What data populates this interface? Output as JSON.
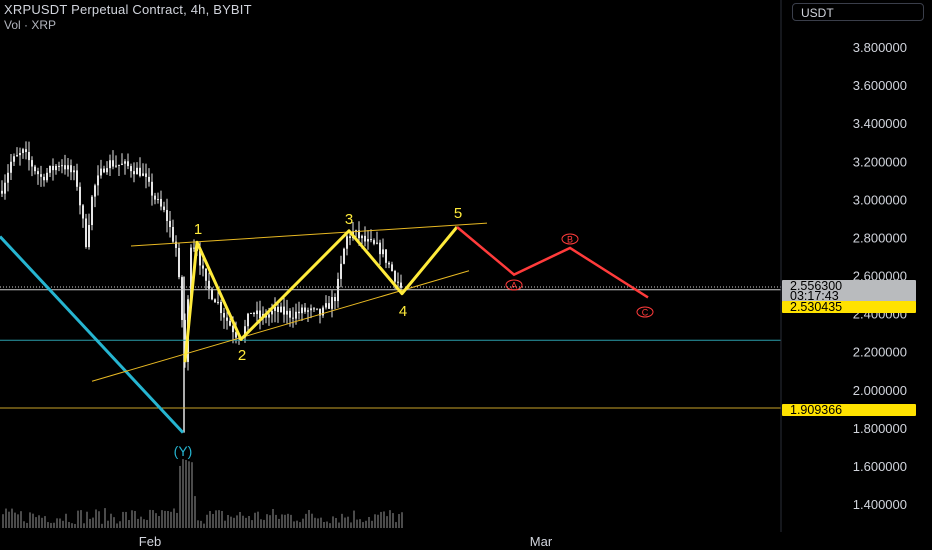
{
  "header": {
    "title": "XRPUSDT Perpetual Contract, 4h, BYBIT",
    "volume_label": "Vol · XRP"
  },
  "currency_button": "USDT",
  "colors": {
    "background": "#000000",
    "candles": "#e6e6e6",
    "wave_impulse": "#ffeb3b",
    "wave_correction": "#ff3b3b",
    "trendline": "#e8b923",
    "blue_line": "#26b5d1",
    "horizontal_level": "#c9a227",
    "cyan_level": "#2a9dab",
    "price_badge_yellow": "#ffe200",
    "price_badge_grey": "#b9bbbe",
    "volume": "#4b4b4b"
  },
  "price_badges": [
    {
      "label": "2.556300",
      "style": "grey"
    },
    {
      "label": "03:17:43",
      "style": "grey"
    },
    {
      "label": "2.530435",
      "style": "yellow"
    },
    {
      "label": "1.909366",
      "style": "yellow"
    }
  ],
  "chart_data": {
    "type": "line",
    "title": "XRPUSDT Perpetual Contract, 4h, BYBIT",
    "x_axis": {
      "ticks": [
        "Feb",
        "Mar"
      ]
    },
    "y_axis": {
      "ticks": [
        "3.800000",
        "3.600000",
        "3.400000",
        "3.200000",
        "3.000000",
        "2.800000",
        "2.600000",
        "2.400000",
        "2.200000",
        "2.000000",
        "1.800000",
        "1.600000",
        "1.400000"
      ],
      "range": [
        1.24,
        4.0
      ]
    },
    "price_summary": {
      "late_january_range": [
        2.95,
        3.27
      ],
      "low": 1.78,
      "last": 2.5563
    },
    "wave_labels": {
      "impulse": [
        "1",
        "2",
        "3",
        "4",
        "5"
      ],
      "correction": [
        "A",
        "B",
        "C"
      ],
      "prior_low": "(Y)"
    },
    "impulse_wave": [
      {
        "label": "1",
        "price": 2.78
      },
      {
        "label": "2",
        "price": 2.27
      },
      {
        "label": "3",
        "price": 2.84
      },
      {
        "label": "4",
        "price": 2.51
      },
      {
        "label": "5",
        "price": 2.86
      }
    ],
    "correction_wave": [
      {
        "label": "A",
        "price": 2.61
      },
      {
        "label": "B",
        "price": 2.75
      },
      {
        "label": "C",
        "price": 2.49
      }
    ],
    "horizontal_levels": [
      2.5563,
      2.530435,
      1.909366,
      2.27
    ]
  }
}
